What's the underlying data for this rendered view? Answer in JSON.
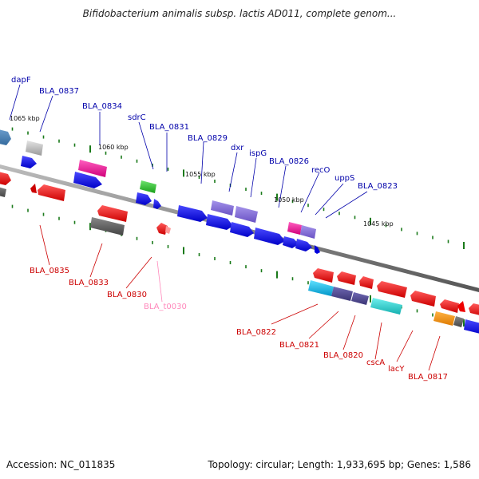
{
  "map": {
    "title": "Bifidobacterium animalis subsp. lactis AD011, complete genom...",
    "accession": "Accession: NC_011835",
    "stats": "Topology: circular; Length: 1,933,695 bp; Genes: 1,586"
  },
  "ruler": [
    "1065 kbp",
    "1060 kbp",
    "1055 kbp",
    "1050 kbp",
    "1045 kbp"
  ],
  "labels_top": [
    "dapF",
    "BLA_0837",
    "BLA_0834",
    "sdrC",
    "BLA_0831",
    "BLA_0829",
    "dxr",
    "ispG",
    "BLA_0826",
    "recO",
    "uppS",
    "BLA_0823"
  ],
  "labels_bottom": [
    "BLA_0835",
    "BLA_0833",
    "BLA_0830",
    "BLA_t0030",
    "BLA_0822",
    "BLA_0821",
    "BLA_0820",
    "cscA",
    "lacY",
    "BLA_0817"
  ],
  "colors": {
    "forward": "#0000ee",
    "reverse": "#ee0000",
    "trna": "#ff88bb",
    "label_top": "#0000aa",
    "label_bottom": "#cc0000",
    "label_trna": "#ff88bb",
    "tick": "#1a7a1a",
    "backbone": "#888888"
  }
}
